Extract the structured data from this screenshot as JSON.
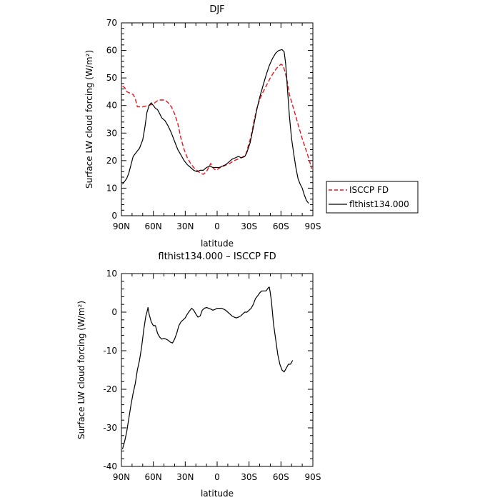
{
  "chart_data": [
    {
      "type": "line",
      "title": "DJF",
      "xlabel": "latitude",
      "ylabel": "Surface LW cloud forcing (W/m²)",
      "xlim": [
        -90,
        90
      ],
      "ylim": [
        0,
        70
      ],
      "x_ticks": [
        {
          "value": -90,
          "label": "90N"
        },
        {
          "value": -60,
          "label": "60N"
        },
        {
          "value": -30,
          "label": "30N"
        },
        {
          "value": 0,
          "label": "0"
        },
        {
          "value": 30,
          "label": "30S"
        },
        {
          "value": 60,
          "label": "60S"
        },
        {
          "value": 90,
          "label": "90S"
        }
      ],
      "y_ticks": [
        0,
        10,
        20,
        30,
        40,
        50,
        60,
        70
      ],
      "legend_position": "right",
      "grid": false,
      "series": [
        {
          "name": "ISCCP FD",
          "color": "#e8141e",
          "dash": "dashed",
          "points": [
            [
              -89,
              47
            ],
            [
              -87,
              46.5
            ],
            [
              -85,
              45
            ],
            [
              -82,
              44.5
            ],
            [
              -79,
              44
            ],
            [
              -77,
              42.5
            ],
            [
              -75,
              39.5
            ],
            [
              -70,
              39.5
            ],
            [
              -65,
              40
            ],
            [
              -60,
              40.5
            ],
            [
              -57,
              41.5
            ],
            [
              -55,
              42
            ],
            [
              -52,
              42
            ],
            [
              -49,
              42
            ],
            [
              -46,
              41
            ],
            [
              -43,
              39.5
            ],
            [
              -40,
              37
            ],
            [
              -37,
              33.5
            ],
            [
              -34,
              28
            ],
            [
              -31,
              24
            ],
            [
              -28,
              21
            ],
            [
              -25,
              19
            ],
            [
              -22,
              17.5
            ],
            [
              -19,
              16.5
            ],
            [
              -16,
              15.5
            ],
            [
              -13,
              15
            ],
            [
              -10,
              16
            ],
            [
              -8,
              17.5
            ],
            [
              -6,
              19
            ],
            [
              -5,
              18
            ],
            [
              -3,
              17
            ],
            [
              -1,
              16.5
            ],
            [
              1,
              17
            ],
            [
              3,
              17.5
            ],
            [
              6,
              18
            ],
            [
              9,
              18.5
            ],
            [
              12,
              19
            ],
            [
              15,
              19.8
            ],
            [
              18,
              20.3
            ],
            [
              21,
              20.8
            ],
            [
              24,
              21.3
            ],
            [
              27,
              22.3
            ],
            [
              29,
              25
            ],
            [
              32,
              29
            ],
            [
              35,
              35
            ],
            [
              38,
              40
            ],
            [
              42,
              44
            ],
            [
              46,
              47
            ],
            [
              50,
              50
            ],
            [
              54,
              52.5
            ],
            [
              57,
              54
            ],
            [
              60,
              55
            ],
            [
              62,
              54.5
            ],
            [
              64,
              52
            ],
            [
              66,
              48.5
            ],
            [
              68,
              44
            ],
            [
              71,
              40
            ],
            [
              74,
              36
            ],
            [
              77,
              32
            ],
            [
              80,
              28
            ],
            [
              83,
              24.5
            ],
            [
              86,
              21
            ],
            [
              89,
              17
            ]
          ]
        },
        {
          "name": "flthist134.000",
          "color": "#000000",
          "dash": "solid",
          "points": [
            [
              -89,
              11.5
            ],
            [
              -87,
              12.5
            ],
            [
              -85,
              13.5
            ],
            [
              -83,
              15.5
            ],
            [
              -81,
              18.5
            ],
            [
              -79,
              21.5
            ],
            [
              -76,
              23
            ],
            [
              -73,
              24.5
            ],
            [
              -70,
              27.5
            ],
            [
              -68,
              32
            ],
            [
              -66,
              37.5
            ],
            [
              -64,
              40
            ],
            [
              -62,
              41
            ],
            [
              -60,
              40
            ],
            [
              -58,
              39
            ],
            [
              -56,
              38.5
            ],
            [
              -54,
              37
            ],
            [
              -52,
              35.5
            ],
            [
              -49,
              34.5
            ],
            [
              -46,
              32.5
            ],
            [
              -43,
              30
            ],
            [
              -40,
              27
            ],
            [
              -37,
              24
            ],
            [
              -34,
              22
            ],
            [
              -31,
              20
            ],
            [
              -28,
              18.5
            ],
            [
              -25,
              17.5
            ],
            [
              -22,
              16.5
            ],
            [
              -19,
              16
            ],
            [
              -16,
              16.5
            ],
            [
              -13,
              16.5
            ],
            [
              -10,
              17.5
            ],
            [
              -7,
              18
            ],
            [
              -4,
              17.5
            ],
            [
              -1,
              17.5
            ],
            [
              2,
              17.5
            ],
            [
              5,
              18
            ],
            [
              8,
              18.5
            ],
            [
              11,
              19.5
            ],
            [
              14,
              20.5
            ],
            [
              17,
              21
            ],
            [
              20,
              21.5
            ],
            [
              23,
              21
            ],
            [
              26,
              21.5
            ],
            [
              28,
              23
            ],
            [
              31,
              26.5
            ],
            [
              34,
              32
            ],
            [
              37,
              38
            ],
            [
              40,
              43
            ],
            [
              43,
              47
            ],
            [
              46,
              51
            ],
            [
              49,
              54.5
            ],
            [
              52,
              57
            ],
            [
              55,
              59
            ],
            [
              58,
              60
            ],
            [
              61,
              60.3
            ],
            [
              63,
              59.5
            ],
            [
              64.5,
              55
            ],
            [
              66,
              46.5
            ],
            [
              68,
              36
            ],
            [
              70,
              28
            ],
            [
              72,
              22.5
            ],
            [
              74,
              17.5
            ],
            [
              76,
              13.5
            ],
            [
              78,
              11.5
            ],
            [
              80,
              10
            ],
            [
              82,
              7.5
            ],
            [
              84,
              5.5
            ],
            [
              86,
              4.5
            ]
          ]
        }
      ]
    },
    {
      "type": "line",
      "title": "flthist134.000 – ISCCP FD",
      "xlabel": "latitude",
      "ylabel": "Surface LW cloud forcing (W/m²)",
      "xlim": [
        -90,
        90
      ],
      "ylim": [
        -40,
        10
      ],
      "x_ticks": [
        {
          "value": -90,
          "label": "90N"
        },
        {
          "value": -60,
          "label": "60N"
        },
        {
          "value": -30,
          "label": "30N"
        },
        {
          "value": 0,
          "label": "0"
        },
        {
          "value": 30,
          "label": "30S"
        },
        {
          "value": 60,
          "label": "60S"
        },
        {
          "value": 90,
          "label": "90S"
        }
      ],
      "y_ticks": [
        -40,
        -30,
        -20,
        -10,
        0,
        10
      ],
      "grid": false,
      "series": [
        {
          "color": "#000000",
          "dash": "solid",
          "points": [
            [
              -89,
              -35.5
            ],
            [
              -87,
              -33.5
            ],
            [
              -85,
              -31
            ],
            [
              -83,
              -27.5
            ],
            [
              -81,
              -24
            ],
            [
              -79,
              -21
            ],
            [
              -77,
              -18.5
            ],
            [
              -75,
              -15
            ],
            [
              -73,
              -12.5
            ],
            [
              -71,
              -9
            ],
            [
              -69,
              -4.5
            ],
            [
              -67,
              -1
            ],
            [
              -66,
              0
            ],
            [
              -65,
              1.2
            ],
            [
              -64,
              -0.5
            ],
            [
              -62,
              -2.5
            ],
            [
              -60,
              -3.5
            ],
            [
              -58,
              -3.5
            ],
            [
              -56,
              -5.5
            ],
            [
              -54,
              -6.5
            ],
            [
              -52,
              -7
            ],
            [
              -50,
              -6.8
            ],
            [
              -48,
              -7
            ],
            [
              -46,
              -7.3
            ],
            [
              -44,
              -7.8
            ],
            [
              -42,
              -8
            ],
            [
              -40,
              -7
            ],
            [
              -38,
              -5.5
            ],
            [
              -36,
              -3.5
            ],
            [
              -34,
              -2.5
            ],
            [
              -32,
              -2
            ],
            [
              -30,
              -1.5
            ],
            [
              -28,
              -0.5
            ],
            [
              -26,
              0.3
            ],
            [
              -24,
              1
            ],
            [
              -22,
              0.5
            ],
            [
              -20,
              -0.5
            ],
            [
              -18,
              -1.3
            ],
            [
              -16,
              -1
            ],
            [
              -14,
              0.5
            ],
            [
              -12,
              1
            ],
            [
              -10,
              1.2
            ],
            [
              -8,
              1
            ],
            [
              -6,
              0.8
            ],
            [
              -4,
              0.5
            ],
            [
              -2,
              0.7
            ],
            [
              0,
              1
            ],
            [
              2,
              1
            ],
            [
              4,
              1
            ],
            [
              6,
              0.8
            ],
            [
              8,
              0.5
            ],
            [
              10,
              0
            ],
            [
              12,
              -0.5
            ],
            [
              14,
              -1
            ],
            [
              16,
              -1.3
            ],
            [
              18,
              -1.5
            ],
            [
              20,
              -1.3
            ],
            [
              22,
              -1
            ],
            [
              24,
              -0.5
            ],
            [
              26,
              0
            ],
            [
              28,
              0
            ],
            [
              30,
              0.5
            ],
            [
              32,
              1
            ],
            [
              34,
              2
            ],
            [
              36,
              3.5
            ],
            [
              38,
              4.2
            ],
            [
              40,
              5
            ],
            [
              42,
              5.5
            ],
            [
              44,
              5.5
            ],
            [
              46,
              5.5
            ],
            [
              48,
              6.3
            ],
            [
              49,
              6.5
            ],
            [
              50,
              5
            ],
            [
              51,
              3
            ],
            [
              52,
              0
            ],
            [
              53,
              -3
            ],
            [
              55,
              -7
            ],
            [
              57,
              -11
            ],
            [
              59,
              -13.5
            ],
            [
              61,
              -15
            ],
            [
              63,
              -15.5
            ],
            [
              65,
              -14.5
            ],
            [
              67,
              -13.5
            ],
            [
              69,
              -13.5
            ],
            [
              71,
              -12.5
            ]
          ]
        }
      ]
    }
  ]
}
